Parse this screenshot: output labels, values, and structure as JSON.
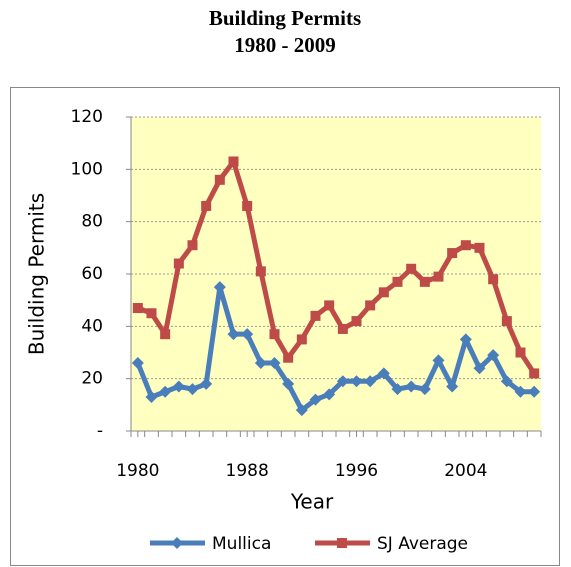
{
  "chart_data": {
    "type": "line",
    "title": [
      "Building Permits",
      "1980 - 2009"
    ],
    "x_label": "Year",
    "y_label": "Building Permits",
    "x": [
      1980,
      1981,
      1982,
      1983,
      1984,
      1985,
      1986,
      1987,
      1988,
      1989,
      1990,
      1991,
      1992,
      1993,
      1994,
      1995,
      1996,
      1997,
      1998,
      1999,
      2000,
      2001,
      2002,
      2003,
      2004,
      2005,
      2006,
      2007,
      2008,
      2009
    ],
    "series": [
      {
        "name": "Mullica",
        "color": "#4a7ebb",
        "marker": "diamond",
        "values": [
          26,
          13,
          15,
          17,
          16,
          18,
          55,
          37,
          37,
          26,
          26,
          18,
          8,
          12,
          14,
          19,
          19,
          19,
          22,
          16,
          17,
          16,
          27,
          17,
          35,
          24,
          29,
          19,
          15,
          15
        ]
      },
      {
        "name": "SJ Average",
        "color": "#be4b48",
        "marker": "square",
        "values": [
          47,
          45,
          37,
          64,
          71,
          86,
          96,
          103,
          86,
          61,
          37,
          28,
          35,
          44,
          48,
          39,
          42,
          48,
          53,
          57,
          62,
          57,
          59,
          68,
          71,
          70,
          58,
          42,
          30,
          22
        ]
      }
    ],
    "xlim": [
      1979.5,
      2009.5
    ],
    "xticks": [
      1980,
      1988,
      1996,
      2004
    ],
    "ylim": [
      0,
      120
    ],
    "yticks": [
      {
        "value": 0,
        "label": "-"
      },
      20,
      40,
      60,
      80,
      100,
      120
    ],
    "grid": true,
    "legend": "bottom",
    "plot_background": "#ffffc0"
  }
}
